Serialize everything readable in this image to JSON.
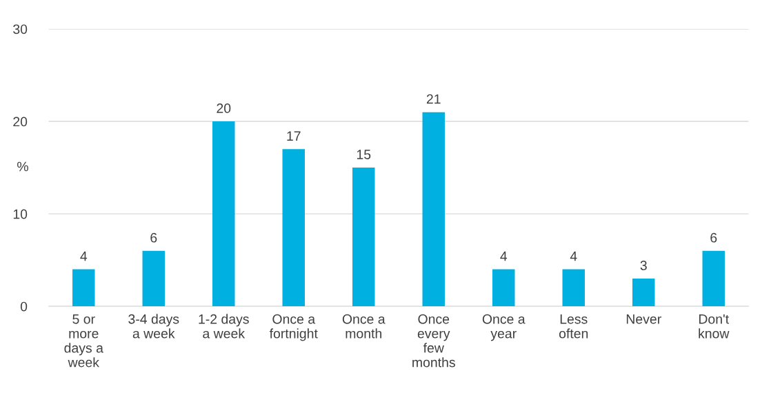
{
  "chart_data": {
    "type": "bar",
    "ylabel": "%",
    "categories": [
      "5 or\nmore\ndays a\nweek",
      "3-4 days\na week",
      "1-2 days\na week",
      "Once a\nfortnight",
      "Once a\nmonth",
      "Once\nevery\nfew\nmonths",
      "Once a\nyear",
      "Less\noften",
      "Never",
      "Don't\nknow"
    ],
    "values": [
      4,
      6,
      20,
      17,
      15,
      21,
      4,
      4,
      3,
      6
    ],
    "color": "#00b0e0",
    "ylim": [
      0,
      30
    ],
    "yticks": [
      0,
      10,
      20,
      30
    ],
    "grid": "y",
    "data_labels": true
  }
}
